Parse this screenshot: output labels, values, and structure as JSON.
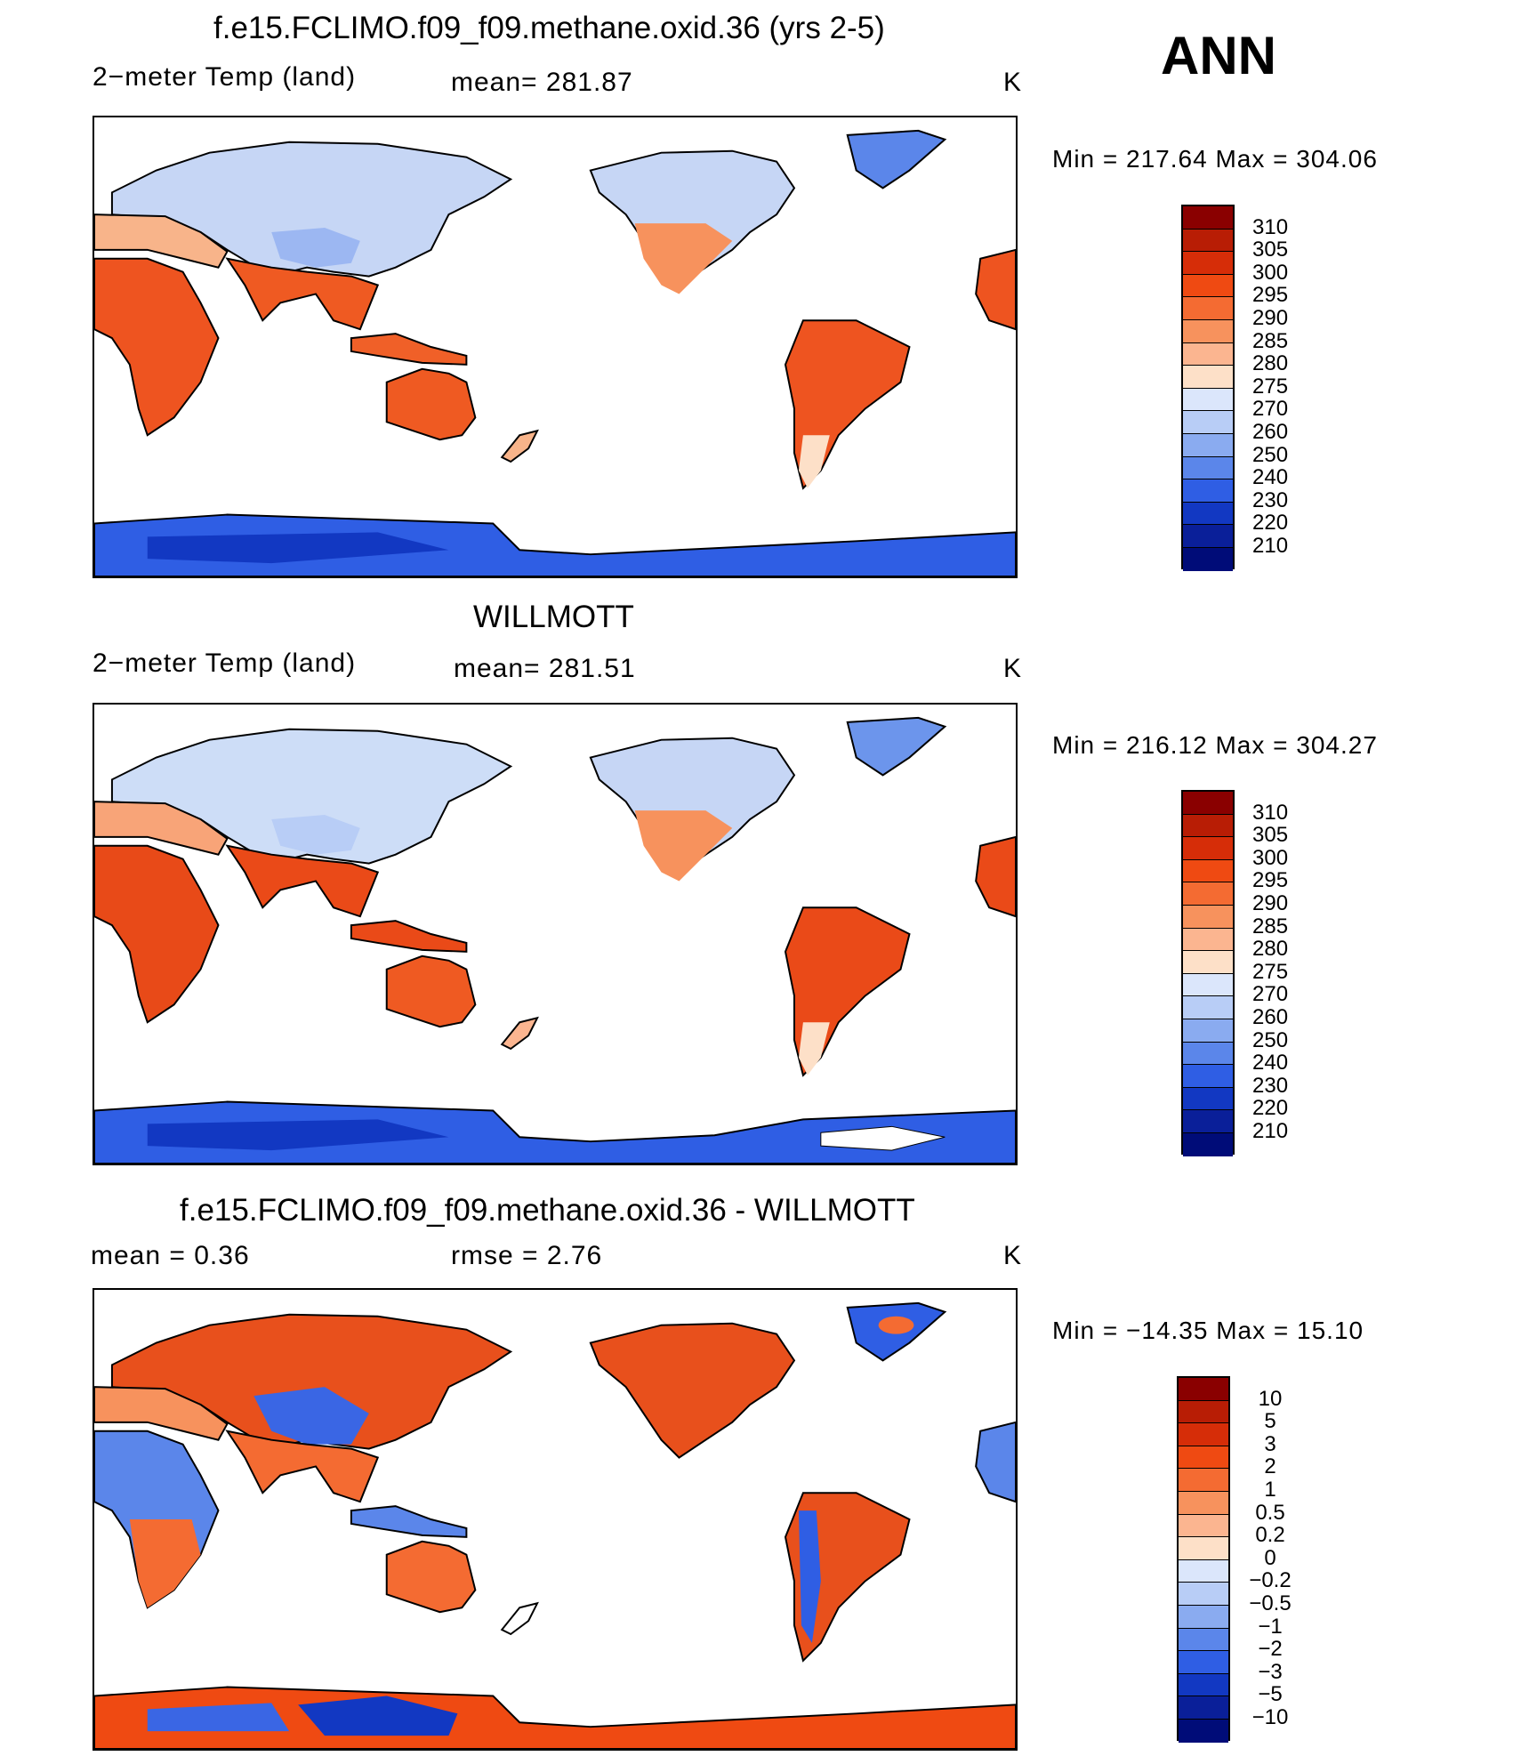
{
  "season": "ANN",
  "panels": [
    {
      "id": "model",
      "title": "f.e15.FCLIMO.f09_f09.methane.oxid.36 (yrs 2-5)",
      "left_label": "2−meter Temp (land)",
      "mid_label": "mean=  281.87",
      "unit": "K",
      "minmax": "Min  =  217.64  Max  =  304.06",
      "colorbar_labels": [
        "310",
        "305",
        "300",
        "295",
        "290",
        "285",
        "280",
        "275",
        "270",
        "260",
        "250",
        "240",
        "230",
        "220",
        "210"
      ],
      "colorbar_colors": [
        "#8a0000",
        "#b81d05",
        "#d62d08",
        "#ef4a12",
        "#f46b32",
        "#f7925d",
        "#fbb590",
        "#fde0c8",
        "#dbe6fb",
        "#b8cdf6",
        "#8aabf0",
        "#5b86ea",
        "#2f5ee4",
        "#1238c2",
        "#0a1f99",
        "#000c78"
      ]
    },
    {
      "id": "obs",
      "title": "WILLMOTT",
      "left_label": "2−meter Temp (land)",
      "mid_label": "mean=  281.51",
      "unit": "K",
      "minmax": "Min  =  216.12  Max  =  304.27",
      "colorbar_labels": [
        "310",
        "305",
        "300",
        "295",
        "290",
        "285",
        "280",
        "275",
        "270",
        "260",
        "250",
        "240",
        "230",
        "220",
        "210"
      ],
      "colorbar_colors": [
        "#8a0000",
        "#b81d05",
        "#d62d08",
        "#ef4a12",
        "#f46b32",
        "#f7925d",
        "#fbb590",
        "#fde0c8",
        "#dbe6fb",
        "#b8cdf6",
        "#8aabf0",
        "#5b86ea",
        "#2f5ee4",
        "#1238c2",
        "#0a1f99",
        "#000c78"
      ]
    },
    {
      "id": "diff",
      "title": "f.e15.FCLIMO.f09_f09.methane.oxid.36 - WILLMOTT",
      "left_label": "mean  =      0.36",
      "mid_label": "rmse  =      2.76",
      "unit": "K",
      "minmax": "Min  =  −14.35  Max  =     15.10",
      "colorbar_labels": [
        "10",
        "5",
        "3",
        "2",
        "1",
        "0.5",
        "0.2",
        "0",
        "−0.2",
        "−0.5",
        "−1",
        "−2",
        "−3",
        "−5",
        "−10"
      ],
      "colorbar_colors": [
        "#8a0000",
        "#b81d05",
        "#d62d08",
        "#ef4a12",
        "#f46b32",
        "#f7925d",
        "#fbb590",
        "#fde0c8",
        "#dbe6fb",
        "#b8cdf6",
        "#8aabf0",
        "#5b86ea",
        "#2f5ee4",
        "#1238c2",
        "#0a1f99",
        "#000c78"
      ]
    }
  ]
}
